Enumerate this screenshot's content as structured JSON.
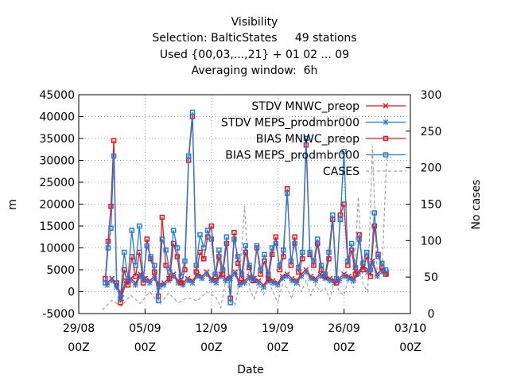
{
  "chart_data": {
    "type": "line",
    "title_lines": [
      "Visibility",
      "Selection: BalticStates     49 stations",
      "Used {00,03,...,21} + 01 02 ... 09",
      "Averaging window:  6h"
    ],
    "xlabel": "Date",
    "ylabel": "m",
    "y2label": "No cases",
    "ylim": [
      -5000,
      45000
    ],
    "y2lim": [
      0,
      300
    ],
    "yticks": [
      "-5000",
      "0",
      "5000",
      "10000",
      "15000",
      "20000",
      "25000",
      "30000",
      "35000",
      "40000",
      "45000"
    ],
    "y2ticks": [
      "0",
      "50",
      "100",
      "150",
      "200",
      "250",
      "300"
    ],
    "xticks": [
      {
        "date": "29/08",
        "hour": "00Z"
      },
      {
        "date": "05/09",
        "hour": "00Z"
      },
      {
        "date": "12/09",
        "hour": "00Z"
      },
      {
        "date": "19/09",
        "hour": "00Z"
      },
      {
        "date": "26/09",
        "hour": "00Z"
      },
      {
        "date": "03/10",
        "hour": "00Z"
      }
    ],
    "grid": true,
    "legend_position": "top-right",
    "x_unit": "days since 29/08 00Z",
    "colors": {
      "red": "#e8141c",
      "blue": "#1e7fe0",
      "cases": "#a0a0a0"
    },
    "series": [
      {
        "name": "STDV MNWC_preop",
        "axis": "y",
        "marker": "x",
        "color": "#e8141c",
        "x": [
          3.0,
          3.5,
          4.0,
          4.5,
          5.0,
          5.5,
          6.0,
          6.5,
          7.0,
          7.5,
          8.0,
          8.5,
          9.0,
          9.5,
          10.0,
          10.5,
          11.0,
          11.5,
          12.0,
          12.5,
          13.0,
          13.5,
          14.0,
          14.5,
          15.0,
          15.5,
          16.0,
          16.5,
          17.0,
          17.5,
          18.0,
          18.5,
          19.0,
          19.5,
          20.0,
          20.5,
          21.0,
          21.5,
          22.0,
          22.5,
          23.0,
          23.5,
          24.0,
          24.5,
          25.0,
          25.5,
          26.0,
          26.5,
          27.0,
          27.5,
          28.0,
          28.5,
          29.0,
          29.5,
          30.0,
          30.5,
          31.0,
          31.5,
          32.0,
          32.5
        ],
        "y": [
          2000,
          3000,
          1500,
          -500,
          2500,
          3000,
          2000,
          4000,
          3000,
          2500,
          3500,
          1500,
          2000,
          3000,
          4000,
          2500,
          2000,
          3000,
          2500,
          4000,
          3500,
          4500,
          3000,
          2500,
          4000,
          3000,
          3500,
          4500,
          2000,
          2500,
          3500,
          3000,
          2500,
          1500,
          3000,
          2500,
          2000,
          3500,
          4000,
          3000,
          2500,
          4000,
          5000,
          3500,
          3000,
          4000,
          3500,
          3000,
          2500,
          3000,
          4000,
          3500,
          3000,
          4500,
          6000,
          5000,
          7000,
          4000,
          5000,
          4500
        ]
      },
      {
        "name": "STDV MEPS_prodmbr000",
        "axis": "y",
        "marker": "*",
        "color": "#1e7fe0",
        "x": [
          3.0,
          3.5,
          4.0,
          4.5,
          5.0,
          5.5,
          6.0,
          6.5,
          7.0,
          7.5,
          8.0,
          8.5,
          9.0,
          9.5,
          10.0,
          10.5,
          11.0,
          11.5,
          12.0,
          12.5,
          13.0,
          13.5,
          14.0,
          14.5,
          15.0,
          15.5,
          16.0,
          16.5,
          17.0,
          17.5,
          18.0,
          18.5,
          19.0,
          19.5,
          20.0,
          20.5,
          21.0,
          21.5,
          22.0,
          22.5,
          23.0,
          23.5,
          24.0,
          24.5,
          25.0,
          25.5,
          26.0,
          26.5,
          27.0,
          27.5,
          28.0,
          28.5,
          29.0,
          29.5,
          30.0,
          30.5,
          31.0,
          31.5,
          32.0,
          32.5
        ],
        "y": [
          1500,
          2500,
          1000,
          -1500,
          2000,
          2500,
          1500,
          3500,
          2500,
          2000,
          3000,
          1000,
          1500,
          2500,
          3500,
          2000,
          1500,
          2500,
          2000,
          3500,
          3000,
          4000,
          2500,
          2000,
          3500,
          2500,
          3000,
          4000,
          1500,
          2000,
          3000,
          2500,
          2000,
          1000,
          2500,
          2000,
          1500,
          3000,
          3500,
          2500,
          2000,
          3500,
          4500,
          3000,
          2500,
          3500,
          3000,
          2500,
          2000,
          2500,
          3500,
          3000,
          2500,
          4000,
          5500,
          4500,
          6500,
          3500,
          4500,
          4000
        ]
      },
      {
        "name": "BIAS MNWC_preop",
        "axis": "y",
        "marker": "square",
        "color": "#e8141c",
        "x": [
          2.8,
          3.1,
          3.4,
          3.7,
          4.0,
          4.4,
          4.8,
          5.2,
          5.6,
          6.0,
          6.4,
          6.8,
          7.2,
          7.6,
          8.0,
          8.4,
          8.8,
          9.2,
          9.6,
          10.0,
          10.4,
          10.8,
          11.2,
          11.6,
          12.0,
          12.4,
          12.8,
          13.2,
          13.6,
          14.0,
          14.4,
          14.8,
          15.2,
          15.6,
          16.0,
          16.4,
          16.8,
          17.2,
          17.6,
          18.0,
          18.4,
          18.8,
          19.2,
          19.6,
          20.0,
          20.4,
          20.8,
          21.2,
          21.6,
          22.0,
          22.4,
          22.8,
          23.2,
          23.6,
          24.0,
          24.4,
          24.8,
          25.2,
          25.6,
          26.0,
          26.4,
          26.8,
          27.2,
          27.6,
          28.0,
          28.4,
          28.8,
          29.2,
          29.6,
          30.0,
          30.4,
          30.8,
          31.2,
          31.6,
          32.0,
          32.4
        ],
        "y": [
          3000,
          11500,
          19500,
          34500,
          2000,
          -2500,
          5000,
          1500,
          8000,
          3500,
          9000,
          2000,
          12000,
          7500,
          4500,
          -1000,
          17000,
          6000,
          3000,
          11000,
          8000,
          2000,
          5000,
          30000,
          40000,
          4500,
          9000,
          7500,
          12500,
          15000,
          3500,
          8000,
          4000,
          11000,
          -1500,
          13500,
          6500,
          3000,
          9000,
          5500,
          2500,
          10000,
          4000,
          7000,
          3000,
          8500,
          12500,
          5000,
          8000,
          23500,
          6000,
          12500,
          4500,
          7500,
          33500,
          8500,
          6000,
          11000,
          5000,
          3500,
          7500,
          16500,
          2000,
          17500,
          20000,
          6000,
          9500,
          4000,
          13000,
          5000,
          8000,
          3500,
          15000,
          8500,
          5500,
          4000
        ]
      },
      {
        "name": "BIAS MEPS_prodmbr000",
        "axis": "y",
        "marker": "square",
        "color": "#1e7fe0",
        "x": [
          2.8,
          3.1,
          3.4,
          3.7,
          4.0,
          4.4,
          4.8,
          5.2,
          5.6,
          6.0,
          6.4,
          6.8,
          7.2,
          7.6,
          8.0,
          8.4,
          8.8,
          9.2,
          9.6,
          10.0,
          10.4,
          10.8,
          11.2,
          11.6,
          12.0,
          12.4,
          12.8,
          13.2,
          13.6,
          14.0,
          14.4,
          14.8,
          15.2,
          15.6,
          16.0,
          16.4,
          16.8,
          17.2,
          17.6,
          18.0,
          18.4,
          18.8,
          19.2,
          19.6,
          20.0,
          20.4,
          20.8,
          21.2,
          21.6,
          22.0,
          22.4,
          22.8,
          23.2,
          23.6,
          24.0,
          24.4,
          24.8,
          25.2,
          25.6,
          26.0,
          26.4,
          26.8,
          27.2,
          27.6,
          28.0,
          28.4,
          28.8,
          29.2,
          29.6,
          30.0,
          30.4,
          30.8,
          31.2,
          31.6,
          32.0,
          32.4
        ],
        "y": [
          2000,
          10000,
          14500,
          31000,
          1500,
          -1500,
          9000,
          3000,
          14000,
          6000,
          15000,
          3000,
          10500,
          8000,
          6000,
          -2000,
          12000,
          9500,
          4500,
          14000,
          10000,
          3500,
          7000,
          31000,
          41000,
          6000,
          13000,
          10000,
          14000,
          12000,
          4000,
          9500,
          5000,
          12500,
          -2500,
          12000,
          8000,
          4000,
          10500,
          6000,
          3000,
          10500,
          5000,
          8500,
          4000,
          10000,
          11000,
          6000,
          9500,
          22500,
          7000,
          11000,
          5500,
          9000,
          35000,
          9000,
          7000,
          12000,
          6000,
          4000,
          9000,
          17500,
          3000,
          16500,
          32000,
          7000,
          11000,
          5500,
          12000,
          6500,
          9000,
          5000,
          18000,
          8000,
          6500,
          5000
        ]
      },
      {
        "name": "CASES",
        "axis": "y2",
        "marker": "dash",
        "color": "#a0a0a0",
        "x": [
          2.5,
          3.5,
          4.5,
          5.5,
          6.5,
          7.5,
          8.5,
          9.5,
          10.5,
          11.5,
          12.5,
          13.5,
          14.5,
          15.0,
          15.5,
          16.0,
          16.5,
          17.0,
          17.5,
          18.0,
          18.5,
          19.0,
          19.5,
          20.0,
          20.5,
          21.0,
          21.5,
          22.0,
          22.5,
          23.0,
          23.5,
          24.0,
          24.5,
          25.0,
          25.5,
          26.0,
          26.5,
          27.0,
          27.5,
          28.0,
          28.5,
          29.0,
          29.5,
          30.0,
          30.5,
          31.0,
          31.5,
          32.0,
          32.5,
          33.0
        ],
        "y": [
          5,
          18,
          10,
          25,
          14,
          30,
          12,
          28,
          15,
          22,
          17,
          30,
          22,
          8,
          45,
          30,
          10,
          50,
          148,
          35,
          20,
          40,
          25,
          45,
          30,
          15,
          40,
          35,
          20,
          50,
          30,
          45,
          25,
          40,
          30,
          35,
          20,
          45,
          30,
          25,
          50,
          35,
          160,
          40,
          30,
          230,
          50,
          60,
          212,
          215
        ]
      }
    ]
  }
}
